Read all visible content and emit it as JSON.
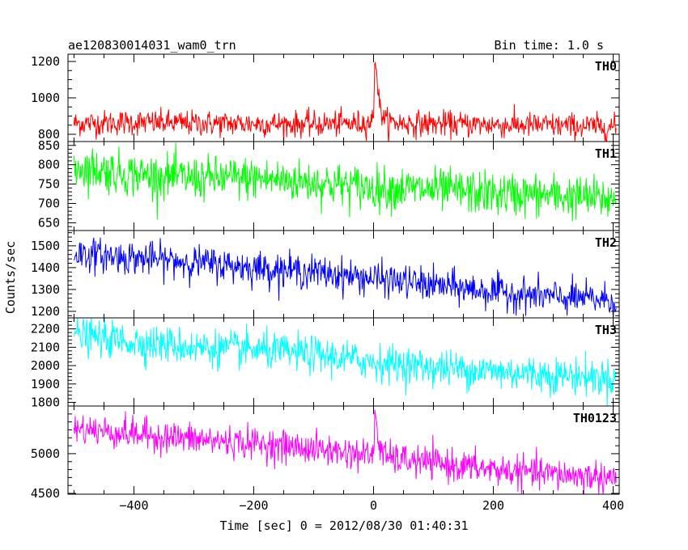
{
  "header": {
    "title": "ae120830014031_wam0_trn",
    "bin_time": "Bin time: 1.0 s"
  },
  "axes": {
    "xlabel": "Time [sec] 0 = 2012/08/30 01:40:31",
    "ylabel": "Counts/sec"
  },
  "chart_data": {
    "type": "line",
    "x_range": [
      -510,
      410
    ],
    "x_ticks": [
      -400,
      -200,
      0,
      200,
      400
    ],
    "x_minor_step": 50,
    "bin_time_s": 1.0,
    "grid": false,
    "panels": [
      {
        "name": "TH0",
        "color": "#ff0000",
        "ylim": [
          760,
          1240
        ],
        "y_ticks": [
          800,
          1000,
          1200
        ],
        "minor_step": 50,
        "series": {
          "x": [
            -500,
            -400,
            -300,
            -200,
            -100,
            -20,
            -5,
            0,
            2,
            5,
            10,
            20,
            50,
            100,
            200,
            300,
            405
          ],
          "y": [
            860,
            865,
            860,
            858,
            855,
            860,
            870,
            880,
            1240,
            1150,
            950,
            870,
            860,
            858,
            852,
            848,
            840
          ]
        },
        "noise_sd": 35
      },
      {
        "name": "TH1",
        "color": "#00ff00",
        "ylim": [
          630,
          860
        ],
        "y_ticks": [
          650,
          700,
          750,
          800,
          850
        ],
        "minor_step": 10,
        "series": {
          "x": [
            -500,
            -400,
            -300,
            -200,
            -100,
            0,
            100,
            200,
            300,
            405
          ],
          "y": [
            795,
            775,
            765,
            765,
            755,
            740,
            735,
            725,
            720,
            710
          ]
        },
        "noise_sd": 28
      },
      {
        "name": "TH2",
        "color": "#0000ff",
        "ylim": [
          1170,
          1570
        ],
        "y_ticks": [
          1200,
          1300,
          1400,
          1500
        ],
        "minor_step": 20,
        "series": {
          "x": [
            -500,
            -400,
            -300,
            -200,
            -100,
            0,
            100,
            200,
            300,
            405
          ],
          "y": [
            1465,
            1445,
            1425,
            1400,
            1380,
            1350,
            1320,
            1290,
            1265,
            1250
          ]
        },
        "noise_sd": 38
      },
      {
        "name": "TH3",
        "color": "#00ffff",
        "ylim": [
          1780,
          2260
        ],
        "y_ticks": [
          1800,
          1900,
          2000,
          2100,
          2200
        ],
        "minor_step": 20,
        "series": {
          "x": [
            -500,
            -400,
            -300,
            -200,
            -100,
            0,
            100,
            200,
            300,
            405
          ],
          "y": [
            2165,
            2130,
            2100,
            2085,
            2060,
            2020,
            1990,
            1970,
            1950,
            1930
          ]
        },
        "noise_sd": 50
      },
      {
        "name": "TH0123",
        "color": "#ff00ff",
        "ylim": [
          4490,
          5600
        ],
        "y_ticks": [
          4500,
          5000
        ],
        "minor_step": 100,
        "series": {
          "x": [
            -500,
            -400,
            -300,
            -200,
            -100,
            -5,
            0,
            3,
            8,
            20,
            50,
            100,
            200,
            300,
            405
          ],
          "y": [
            5320,
            5250,
            5180,
            5130,
            5060,
            4980,
            5000,
            5550,
            5150,
            4950,
            4920,
            4880,
            4800,
            4740,
            4700
          ]
        },
        "noise_sd": 100
      }
    ]
  }
}
